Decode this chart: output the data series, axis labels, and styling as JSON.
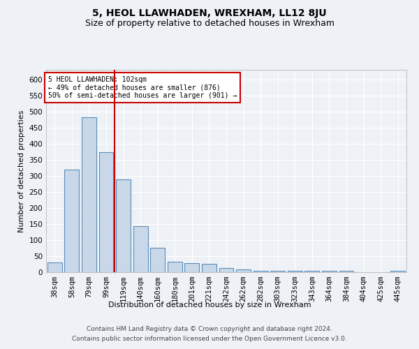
{
  "title": "5, HEOL LLAWHADEN, WREXHAM, LL12 8JU",
  "subtitle": "Size of property relative to detached houses in Wrexham",
  "xlabel": "Distribution of detached houses by size in Wrexham",
  "ylabel": "Number of detached properties",
  "footer_line1": "Contains HM Land Registry data © Crown copyright and database right 2024.",
  "footer_line2": "Contains public sector information licensed under the Open Government Licence v3.0.",
  "categories": [
    "38sqm",
    "58sqm",
    "79sqm",
    "99sqm",
    "119sqm",
    "140sqm",
    "160sqm",
    "180sqm",
    "201sqm",
    "221sqm",
    "242sqm",
    "262sqm",
    "282sqm",
    "303sqm",
    "323sqm",
    "343sqm",
    "364sqm",
    "384sqm",
    "404sqm",
    "425sqm",
    "445sqm"
  ],
  "values": [
    30,
    320,
    483,
    373,
    288,
    143,
    76,
    32,
    29,
    25,
    14,
    8,
    4,
    5,
    5,
    5,
    5,
    5,
    0,
    0,
    5
  ],
  "bar_color": "#c8d8e8",
  "bar_edge_color": "#5b8db8",
  "vline_color": "#cc0000",
  "annotation_text": "5 HEOL LLAWHADEN: 102sqm\n← 49% of detached houses are smaller (876)\n50% of semi-detached houses are larger (901) →",
  "annotation_box_color": "#ffffff",
  "annotation_box_edge": "#cc0000",
  "ylim": [
    0,
    630
  ],
  "yticks": [
    0,
    50,
    100,
    150,
    200,
    250,
    300,
    350,
    400,
    450,
    500,
    550,
    600
  ],
  "background_color": "#eef2f7",
  "grid_color": "#ffffff",
  "title_fontsize": 10,
  "subtitle_fontsize": 9,
  "axis_label_fontsize": 8,
  "tick_fontsize": 7.5,
  "footer_fontsize": 6.5
}
